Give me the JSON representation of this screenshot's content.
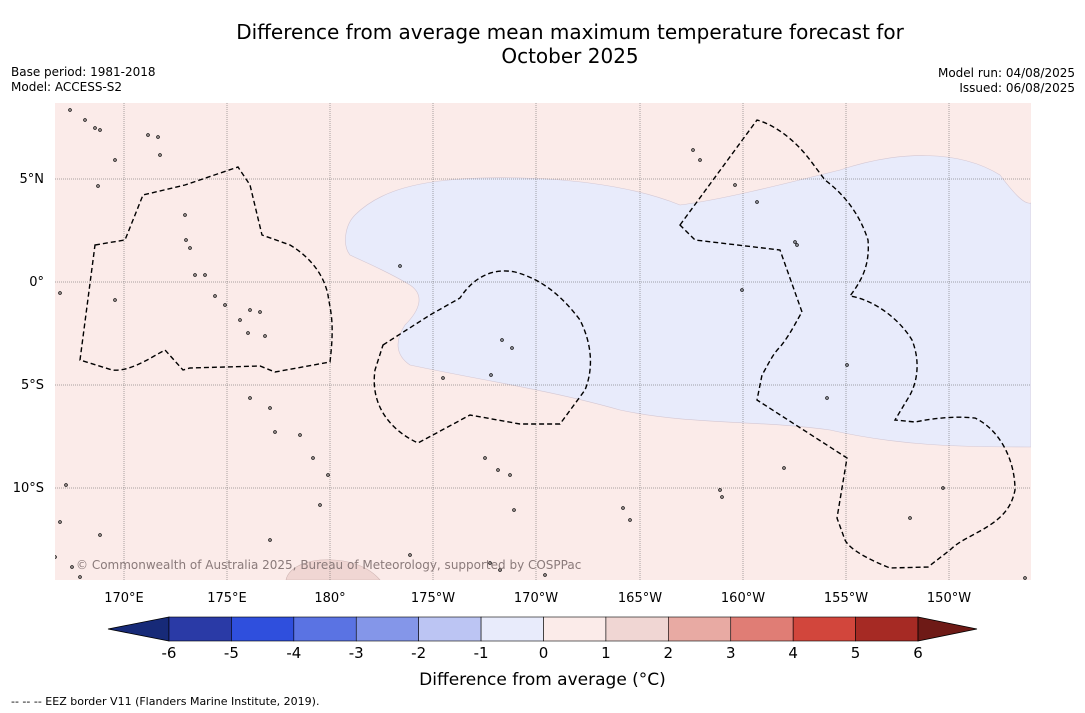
{
  "title": {
    "line1": "Difference from average mean maximum temperature forecast for",
    "line2": "October 2025"
  },
  "meta_left": {
    "base_period": "Base period: 1981-2018",
    "model": "Model: ACCESS-S2"
  },
  "meta_right": {
    "model_run": "Model run: 04/08/2025",
    "issued": "Issued: 06/08/2025"
  },
  "map": {
    "lat_labels": [
      "5°N",
      "0°",
      "5°S",
      "10°S"
    ],
    "lon_labels": [
      "170°E",
      "175°E",
      "180°",
      "175°W",
      "170°W",
      "165°W",
      "160°W",
      "155°W",
      "150°W"
    ],
    "copyright": "© Commonwealth of Australia 2025, Bureau of Meteorology, supported by COSPPac",
    "colors": {
      "warm_0_1": "#fbebe9",
      "cool_m1_0": "#e8ebfb",
      "warm_1_2": "#f0d6d3",
      "grid": "#555555",
      "coast": "#000000"
    },
    "legend": "--  --  -- EEZ border V11 (Flanders Marine Institute, 2019)."
  },
  "colorbar": {
    "label": "Difference from average (°C)",
    "ticks": [
      "-6",
      "-5",
      "-4",
      "-3",
      "-2",
      "-1",
      "0",
      "1",
      "2",
      "3",
      "4",
      "5",
      "6"
    ],
    "low_extend_color": "#172a78",
    "high_extend_color": "#6e1a16",
    "colors": [
      "#2a3aa6",
      "#2f4fdd",
      "#5a73e3",
      "#8496e9",
      "#bcc5f3",
      "#e8ebfb",
      "#fbebe9",
      "#f0d6d3",
      "#e8aaa3",
      "#e07d75",
      "#d2463c",
      "#a62a24"
    ]
  }
}
